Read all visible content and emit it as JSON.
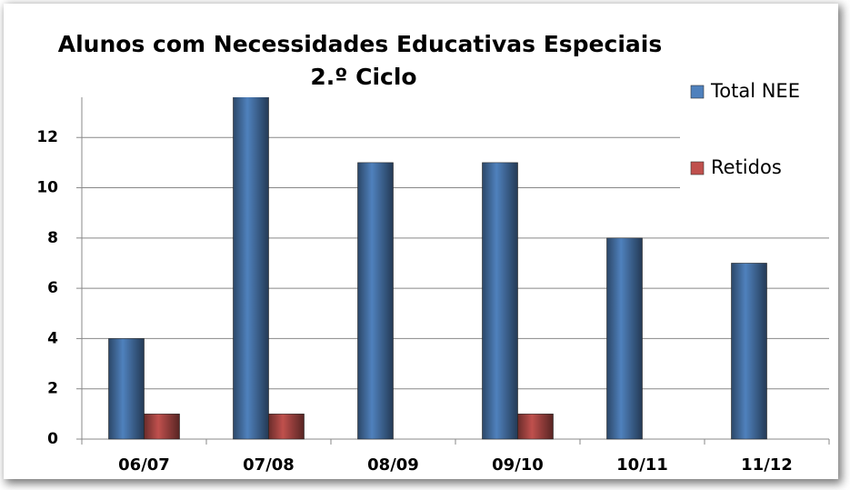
{
  "chart_data": {
    "type": "bar",
    "title": [
      "Alunos com Necessidades Educativas Especiais",
      "2.º Ciclo"
    ],
    "categories": [
      "06/07",
      "07/08",
      "08/09",
      "09/10",
      "10/11",
      "11/12"
    ],
    "series": [
      {
        "name": "Total NEE",
        "color": "#4f81bd",
        "values": [
          4,
          14,
          11,
          11,
          8,
          7
        ]
      },
      {
        "name": "Retidos",
        "color": "#c0504d",
        "values": [
          1,
          1,
          0,
          1,
          0,
          0
        ]
      }
    ],
    "ylim": [
      0,
      13.6
    ],
    "yticks": [
      0,
      2,
      4,
      6,
      8,
      10,
      12
    ],
    "grid": true,
    "legend": "right"
  }
}
